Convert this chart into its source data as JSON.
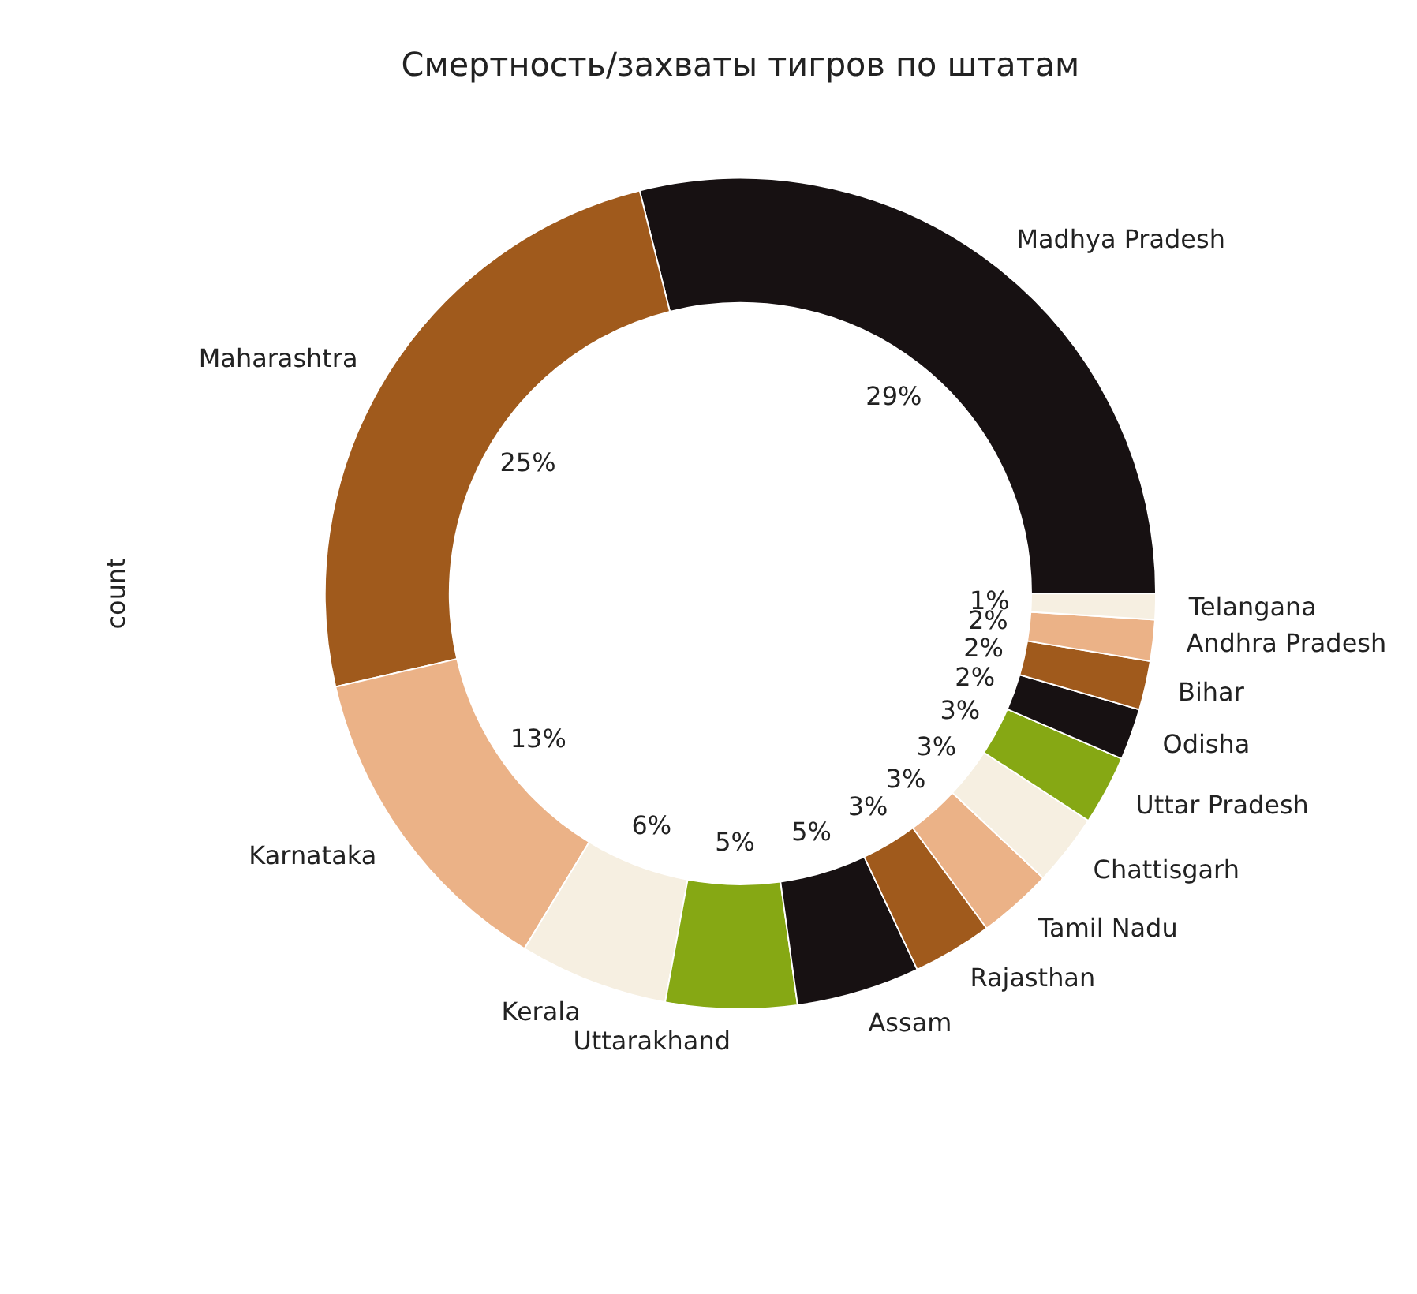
{
  "chart_data": {
    "type": "donut",
    "title": "Смертность/захваты тигров по штатам",
    "ylabel": "count",
    "categories": [
      "Madhya Pradesh",
      "Maharashtra",
      "Karnataka",
      "Kerala",
      "Uttarakhand",
      "Assam",
      "Rajasthan",
      "Tamil Nadu",
      "Chattisgarh",
      "Uttar Pradesh",
      "Odisha",
      "Bihar",
      "Andhra Pradesh",
      "Telangana"
    ],
    "values": [
      28.9,
      24.7,
      12.7,
      5.8,
      5.1,
      4.8,
      3.1,
      2.9,
      2.8,
      2.7,
      2.0,
      1.9,
      1.6,
      1.0
    ],
    "value_labels": [
      "29%",
      "25%",
      "13%",
      "6%",
      "5%",
      "5%",
      "3%",
      "3%",
      "3%",
      "3%",
      "2%",
      "2%",
      "2%",
      "1%"
    ],
    "colors": [
      "#171112",
      "#a05a1c",
      "#ebb287",
      "#f6efe1",
      "#86a814",
      "#171112",
      "#a05a1c",
      "#ebb287",
      "#f6efe1",
      "#86a814",
      "#171112",
      "#a05a1c",
      "#ebb287",
      "#f6efe1"
    ]
  }
}
